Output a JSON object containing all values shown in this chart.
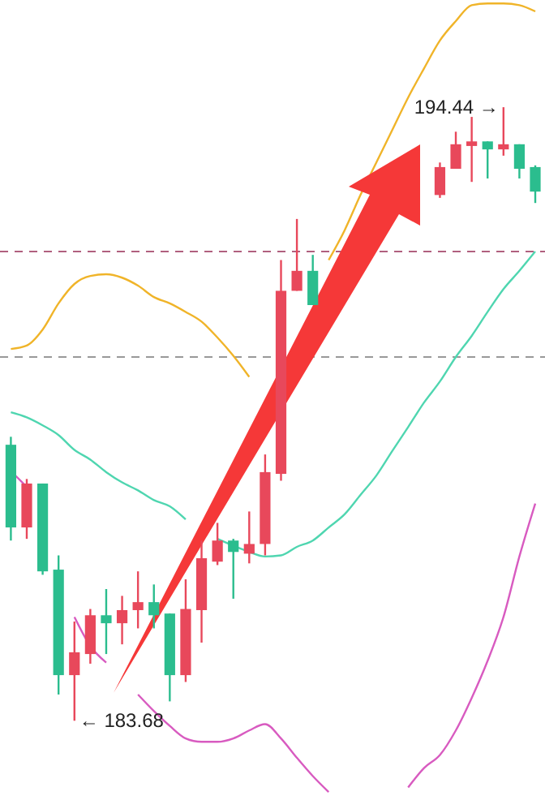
{
  "chart_data": {
    "type": "candlestick",
    "categories": [
      null,
      null,
      null,
      null,
      null,
      null,
      null,
      null,
      null,
      null,
      null,
      null,
      null,
      null,
      null,
      null,
      null,
      null,
      null,
      null,
      null,
      null,
      null,
      null,
      null,
      null,
      null,
      null,
      null,
      null,
      null,
      null,
      null,
      null
    ],
    "ohlc": [
      [
        188.52,
        188.66,
        186.84,
        187.07
      ],
      [
        187.07,
        187.92,
        186.87,
        187.84
      ],
      [
        187.84,
        187.84,
        186.24,
        186.3
      ],
      [
        186.33,
        186.58,
        184.14,
        184.48
      ],
      [
        184.48,
        185.42,
        183.68,
        184.88
      ],
      [
        184.85,
        185.64,
        184.68,
        185.53
      ],
      [
        185.53,
        185.99,
        184.85,
        185.39
      ],
      [
        185.39,
        185.87,
        185.02,
        185.62
      ],
      [
        185.62,
        186.3,
        185.3,
        185.76
      ],
      [
        185.76,
        186.07,
        185.3,
        185.53
      ],
      [
        185.56,
        185.56,
        184.02,
        184.48
      ],
      [
        184.48,
        186.16,
        184.36,
        185.64
      ],
      [
        185.62,
        186.84,
        185.05,
        186.53
      ],
      [
        186.47,
        187.15,
        186.41,
        186.84
      ],
      [
        186.84,
        186.87,
        185.82,
        186.64
      ],
      [
        186.61,
        187.35,
        186.44,
        186.78
      ],
      [
        186.78,
        188.35,
        186.58,
        188.04
      ],
      [
        188.01,
        191.76,
        187.89,
        191.22
      ],
      [
        191.22,
        192.48,
        191.22,
        191.57
      ],
      [
        191.57,
        191.85,
        190.97,
        190.97
      ],
      null,
      null,
      null,
      null,
      null,
      null,
      null,
      [
        192.9,
        193.47,
        192.85,
        193.39
      ],
      [
        193.36,
        194.01,
        193.36,
        193.79
      ],
      [
        193.76,
        194.27,
        193.13,
        193.84
      ],
      [
        193.84,
        193.84,
        193.19,
        193.7
      ],
      [
        193.7,
        194.44,
        193.59,
        193.79
      ],
      [
        193.79,
        193.79,
        193.19,
        193.36
      ],
      [
        193.39,
        193.42,
        192.76,
        192.96
      ]
    ],
    "colors": [
      "#2bbd8e",
      "#e8485b",
      "#2bbd8e",
      "#2bbd8e",
      "#e8485b",
      "#e8485b",
      "#2bbd8e",
      "#e8485b",
      "#e8485b",
      "#2bbd8e",
      "#2bbd8e",
      "#e8485b",
      "#e8485b",
      "#e8485b",
      "#2bbd8e",
      "#e8485b",
      "#e8485b",
      "#e8485b",
      "#e8485b",
      "#2bbd8e",
      null,
      null,
      null,
      null,
      null,
      null,
      null,
      "#e8485b",
      "#e8485b",
      "#e8485b",
      "#2bbd8e",
      "#e8485b",
      "#2bbd8e",
      "#2bbd8e"
    ],
    "series": [
      {
        "type": "line",
        "color": "#f0b429",
        "values": [
          190.2,
          190.26,
          190.54,
          191.0,
          191.34,
          191.48,
          191.51,
          191.45,
          191.31,
          191.11,
          191.0,
          190.85,
          190.68,
          190.4,
          190.08,
          189.71,
          null,
          null,
          null,
          null,
          191.76,
          192.28,
          192.9,
          193.47,
          194.04,
          194.61,
          195.12,
          195.61,
          195.95,
          196.23,
          196.26,
          196.26,
          196.23,
          196.12
        ]
      },
      {
        "type": "line",
        "color": "#4fd6b0",
        "values": [
          189.09,
          189.0,
          188.86,
          188.69,
          188.43,
          188.26,
          188.04,
          187.86,
          187.72,
          187.55,
          187.44,
          187.21,
          null,
          186.87,
          186.75,
          186.64,
          186.56,
          186.58,
          186.73,
          186.84,
          187.07,
          187.3,
          187.64,
          187.98,
          188.41,
          188.83,
          189.26,
          189.63,
          190.06,
          190.43,
          190.85,
          191.25,
          191.57,
          191.91
        ]
      },
      {
        "type": "line",
        "color": "#d85bc0",
        "values": [
          188.06,
          187.78,
          null,
          null,
          185.5,
          184.99,
          184.7,
          null,
          184.14,
          183.85,
          183.59,
          183.37,
          183.31,
          183.31,
          183.37,
          183.51,
          183.62,
          183.37,
          183.03,
          182.71,
          182.43,
          null,
          null,
          null,
          null,
          182.51,
          182.85,
          183.08,
          183.51,
          184.08,
          184.73,
          185.5,
          186.56,
          187.49
        ]
      }
    ],
    "ref_lines": [
      {
        "axis": "y",
        "value": 191.91,
        "color": "#b0607f",
        "line_style": "dashed"
      },
      {
        "axis": "y",
        "value": 190.06,
        "color": "#999999",
        "line_style": "dashed"
      }
    ],
    "annotations": [
      "194.44 →",
      "← 183.68"
    ],
    "ylim": [
      182.29,
      196.32
    ]
  }
}
